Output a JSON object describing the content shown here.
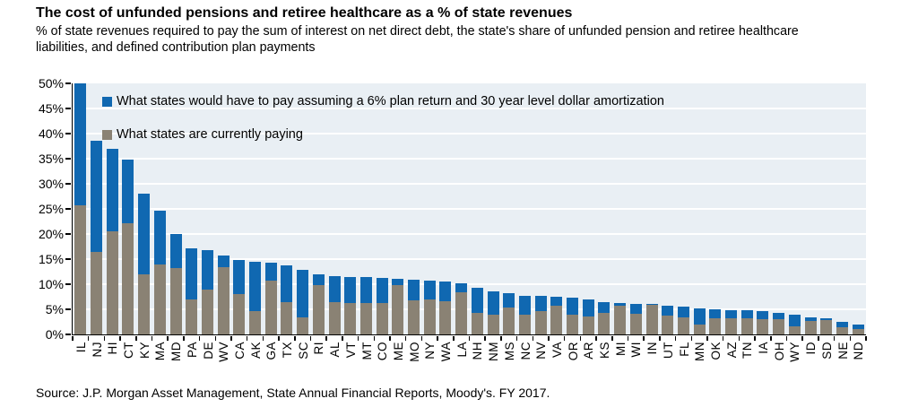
{
  "chart_data": {
    "type": "bar",
    "stacked": true,
    "title": "The cost of unfunded pensions and retiree healthcare as a % of state revenues",
    "subtitle": "% of state revenues required to pay the sum of interest on net direct debt, the state's share of unfunded pension and retiree healthcare liabilities, and defined contribution plan payments",
    "source": "Source: J.P. Morgan Asset Management, State Annual Financial Reports, Moody's. FY 2017.",
    "categories": [
      "IL",
      "NJ",
      "HI",
      "CT",
      "KY",
      "MA",
      "MD",
      "PA",
      "DE",
      "WV",
      "CA",
      "AK",
      "GA",
      "TX",
      "SC",
      "RI",
      "AL",
      "VT",
      "MT",
      "CO",
      "ME",
      "MO",
      "NY",
      "WA",
      "LA",
      "NH",
      "NM",
      "MS",
      "NC",
      "NV",
      "VA",
      "OR",
      "AR",
      "KS",
      "MI",
      "WI",
      "IN",
      "UT",
      "FL",
      "MN",
      "OK",
      "AZ",
      "TN",
      "IA",
      "OH",
      "WY",
      "ID",
      "SD",
      "NE",
      "ND"
    ],
    "series": [
      {
        "key": "current",
        "name": "What states are currently paying",
        "color": "#8A8274",
        "values": [
          25.8,
          16.4,
          20.6,
          22.2,
          12.0,
          14.0,
          13.3,
          6.9,
          9.0,
          13.4,
          8.0,
          4.7,
          10.8,
          6.5,
          3.4,
          9.9,
          6.4,
          6.2,
          6.3,
          6.2,
          9.8,
          6.7,
          6.9,
          6.6,
          8.4,
          4.3,
          4.0,
          5.3,
          4.0,
          4.6,
          5.8,
          4.0,
          3.6,
          4.2,
          5.7,
          4.1,
          5.9,
          3.7,
          3.4,
          2.0,
          3.2,
          3.3,
          3.3,
          3.1,
          3.0,
          1.6,
          2.6,
          2.8,
          1.4,
          1.0
        ]
      },
      {
        "key": "required_additional",
        "name": "What states would have to pay assuming a 6% plan return and 30 year level dollar amortization",
        "color": "#1068B1",
        "values": [
          24.2,
          22.2,
          16.4,
          12.7,
          16.0,
          10.6,
          6.7,
          10.3,
          7.7,
          2.4,
          6.8,
          9.7,
          3.5,
          7.2,
          9.5,
          2.1,
          5.2,
          5.3,
          5.1,
          5.1,
          1.2,
          4.2,
          3.8,
          3.9,
          1.7,
          4.9,
          4.6,
          3.0,
          3.7,
          3.0,
          1.7,
          3.4,
          3.4,
          2.3,
          0.6,
          2.0,
          0.1,
          2.0,
          2.1,
          3.1,
          1.8,
          1.6,
          1.5,
          1.5,
          1.3,
          2.4,
          0.8,
          0.4,
          1.1,
          0.9
        ]
      }
    ],
    "legend_order": [
      "required_additional",
      "current"
    ],
    "ylim": [
      0,
      50
    ],
    "y_tick_step": 5,
    "y_ticks": [
      "0%",
      "5%",
      "10%",
      "15%",
      "20%",
      "25%",
      "30%",
      "35%",
      "40%",
      "45%",
      "50%"
    ],
    "grid": true,
    "legend_position": "top-left-inside",
    "plot_bg": "#E9EFF4",
    "bars_clipped_at_ylim": [
      "IL"
    ]
  }
}
